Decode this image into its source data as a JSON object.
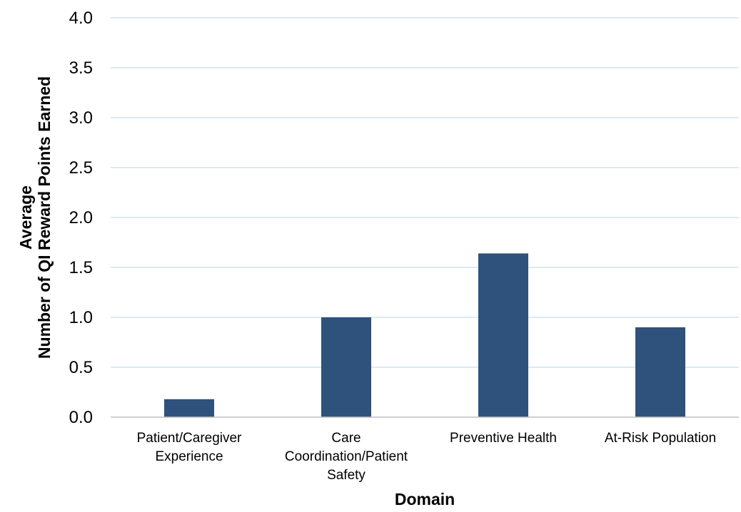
{
  "chart_data": {
    "type": "bar",
    "categories": [
      [
        "Patient/Caregiver",
        "Experience"
      ],
      [
        "Care",
        "Coordination/Patient",
        "Safety"
      ],
      [
        "Preventive Health"
      ],
      [
        "At-Risk Population"
      ]
    ],
    "values": [
      0.18,
      1.0,
      1.64,
      0.9
    ],
    "title": "",
    "xlabel": "Domain",
    "ylabel": [
      "Average",
      "Number of QI Reward Points Earned"
    ],
    "ylim": [
      0,
      4.0
    ],
    "yticks": [
      "0.0",
      "0.5",
      "1.0",
      "1.5",
      "2.0",
      "2.5",
      "3.0",
      "3.5",
      "4.0"
    ],
    "grid": true,
    "legend": "none",
    "colors": {
      "bar": "#2f527c",
      "grid": "#cfe3f0",
      "axis": "#bfbfbf"
    }
  }
}
